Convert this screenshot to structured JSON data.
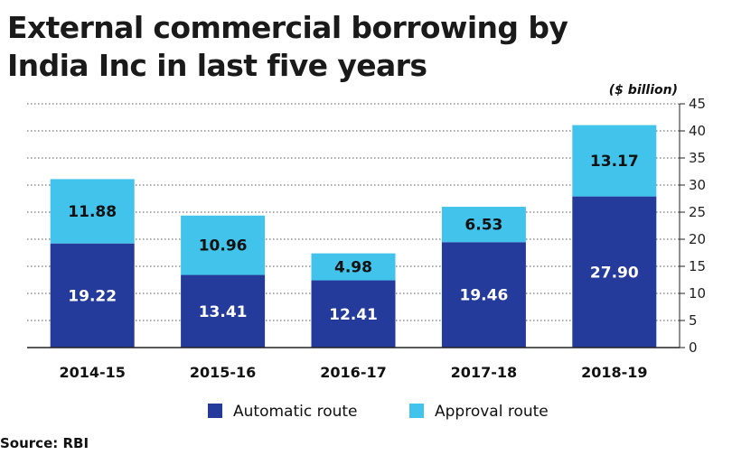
{
  "chart_data": {
    "type": "bar",
    "stacked": true,
    "title": "External commercial borrowing by India Inc in last five years",
    "unit_label": "($ billion)",
    "categories": [
      "2014-15",
      "2015-16",
      "2016-17",
      "2017-18",
      "2018-19"
    ],
    "series": [
      {
        "name": "Automatic route",
        "color": "#253b9c",
        "values": [
          19.22,
          13.41,
          12.41,
          19.46,
          27.9
        ],
        "labels": [
          "19.22",
          "13.41",
          "12.41",
          "19.46",
          "27.90"
        ]
      },
      {
        "name": "Approval route",
        "color": "#41c3ec",
        "values": [
          11.88,
          10.96,
          4.98,
          6.53,
          13.17
        ],
        "labels": [
          "11.88",
          "10.96",
          "4.98",
          "6.53",
          "13.17"
        ]
      }
    ],
    "ylim": [
      0,
      45
    ],
    "yticks": [
      0,
      5,
      10,
      15,
      20,
      25,
      30,
      35,
      40,
      45
    ],
    "y_axis_position": "right",
    "grid": true,
    "legend": "bottom",
    "source": "Source: RBI"
  }
}
